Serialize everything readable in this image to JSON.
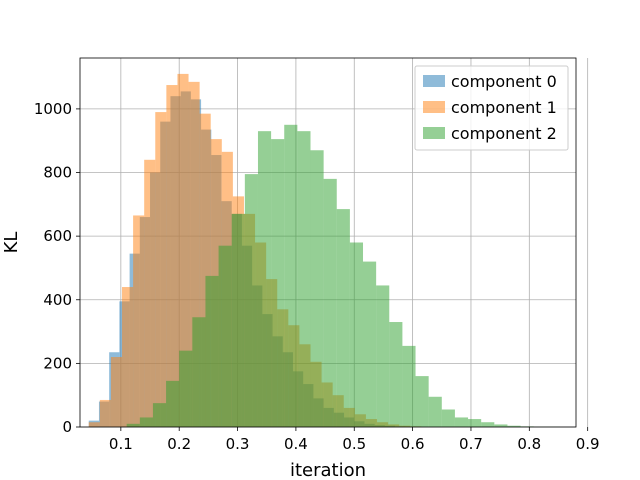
{
  "chart_data": {
    "type": "bar",
    "subtype": "overlapping-histogram",
    "title": "",
    "xlabel": "iteration",
    "ylabel": "KL",
    "xlim": [
      0.03,
      0.88
    ],
    "ylim": [
      0,
      1160
    ],
    "xticks": [
      0.1,
      0.2,
      0.3,
      0.4,
      0.5,
      0.6,
      0.7,
      0.8,
      0.9
    ],
    "xtick_labels": [
      "0.1",
      "0.2",
      "0.3",
      "0.4",
      "0.5",
      "0.6",
      "0.7",
      "0.8",
      "0.9"
    ],
    "yticks": [
      0,
      200,
      400,
      600,
      800,
      1000
    ],
    "ytick_labels": [
      "0",
      "200",
      "400",
      "600",
      "800",
      "1000"
    ],
    "grid": true,
    "legend_position": "top-right",
    "bar_opacity": 0.5,
    "series": [
      {
        "name": "component 0",
        "color": "#1f77b4",
        "bin_edges": [
          0.045,
          0.0625,
          0.08,
          0.0975,
          0.115,
          0.1325,
          0.15,
          0.1675,
          0.185,
          0.2025,
          0.22,
          0.2375,
          0.255,
          0.2725,
          0.29,
          0.3075,
          0.325,
          0.3425,
          0.36,
          0.3775,
          0.395,
          0.4125,
          0.43,
          0.4475,
          0.465,
          0.4825,
          0.5,
          0.5175,
          0.535,
          0.5525,
          0.57,
          0.5875,
          0.605
        ],
        "counts": [
          20,
          80,
          235,
          395,
          545,
          660,
          800,
          960,
          1040,
          1055,
          1030,
          935,
          855,
          710,
          670,
          570,
          445,
          355,
          285,
          235,
          175,
          135,
          90,
          60,
          45,
          30,
          18,
          10,
          6,
          4,
          2,
          1
        ]
      },
      {
        "name": "component 1",
        "color": "#ff7f0e",
        "bin_edges": [
          0.045,
          0.064,
          0.083,
          0.102,
          0.121,
          0.14,
          0.159,
          0.178,
          0.197,
          0.216,
          0.235,
          0.254,
          0.273,
          0.292,
          0.311,
          0.33,
          0.349,
          0.368,
          0.387,
          0.406,
          0.425,
          0.444,
          0.463,
          0.482,
          0.501,
          0.52,
          0.539,
          0.558,
          0.577,
          0.596,
          0.615
        ],
        "counts": [
          15,
          85,
          220,
          440,
          665,
          840,
          990,
          1075,
          1110,
          1085,
          985,
          905,
          865,
          725,
          670,
          580,
          465,
          370,
          320,
          260,
          205,
          140,
          100,
          60,
          40,
          25,
          15,
          8,
          4,
          2
        ]
      },
      {
        "name": "component 2",
        "color": "#2ca02c",
        "bin_edges": [
          0.11,
          0.1325,
          0.155,
          0.1775,
          0.2,
          0.2225,
          0.245,
          0.2675,
          0.29,
          0.3125,
          0.335,
          0.3575,
          0.38,
          0.4025,
          0.425,
          0.4475,
          0.47,
          0.4925,
          0.515,
          0.5375,
          0.56,
          0.5825,
          0.605,
          0.6275,
          0.65,
          0.6725,
          0.695,
          0.7175,
          0.74,
          0.7625,
          0.785,
          0.8075,
          0.83,
          0.8525
        ],
        "counts": [
          10,
          30,
          75,
          145,
          240,
          345,
          475,
          570,
          670,
          795,
          930,
          905,
          950,
          930,
          870,
          780,
          685,
          580,
          520,
          445,
          330,
          255,
          160,
          95,
          55,
          30,
          25,
          15,
          8,
          4,
          2,
          1,
          1
        ]
      }
    ]
  }
}
